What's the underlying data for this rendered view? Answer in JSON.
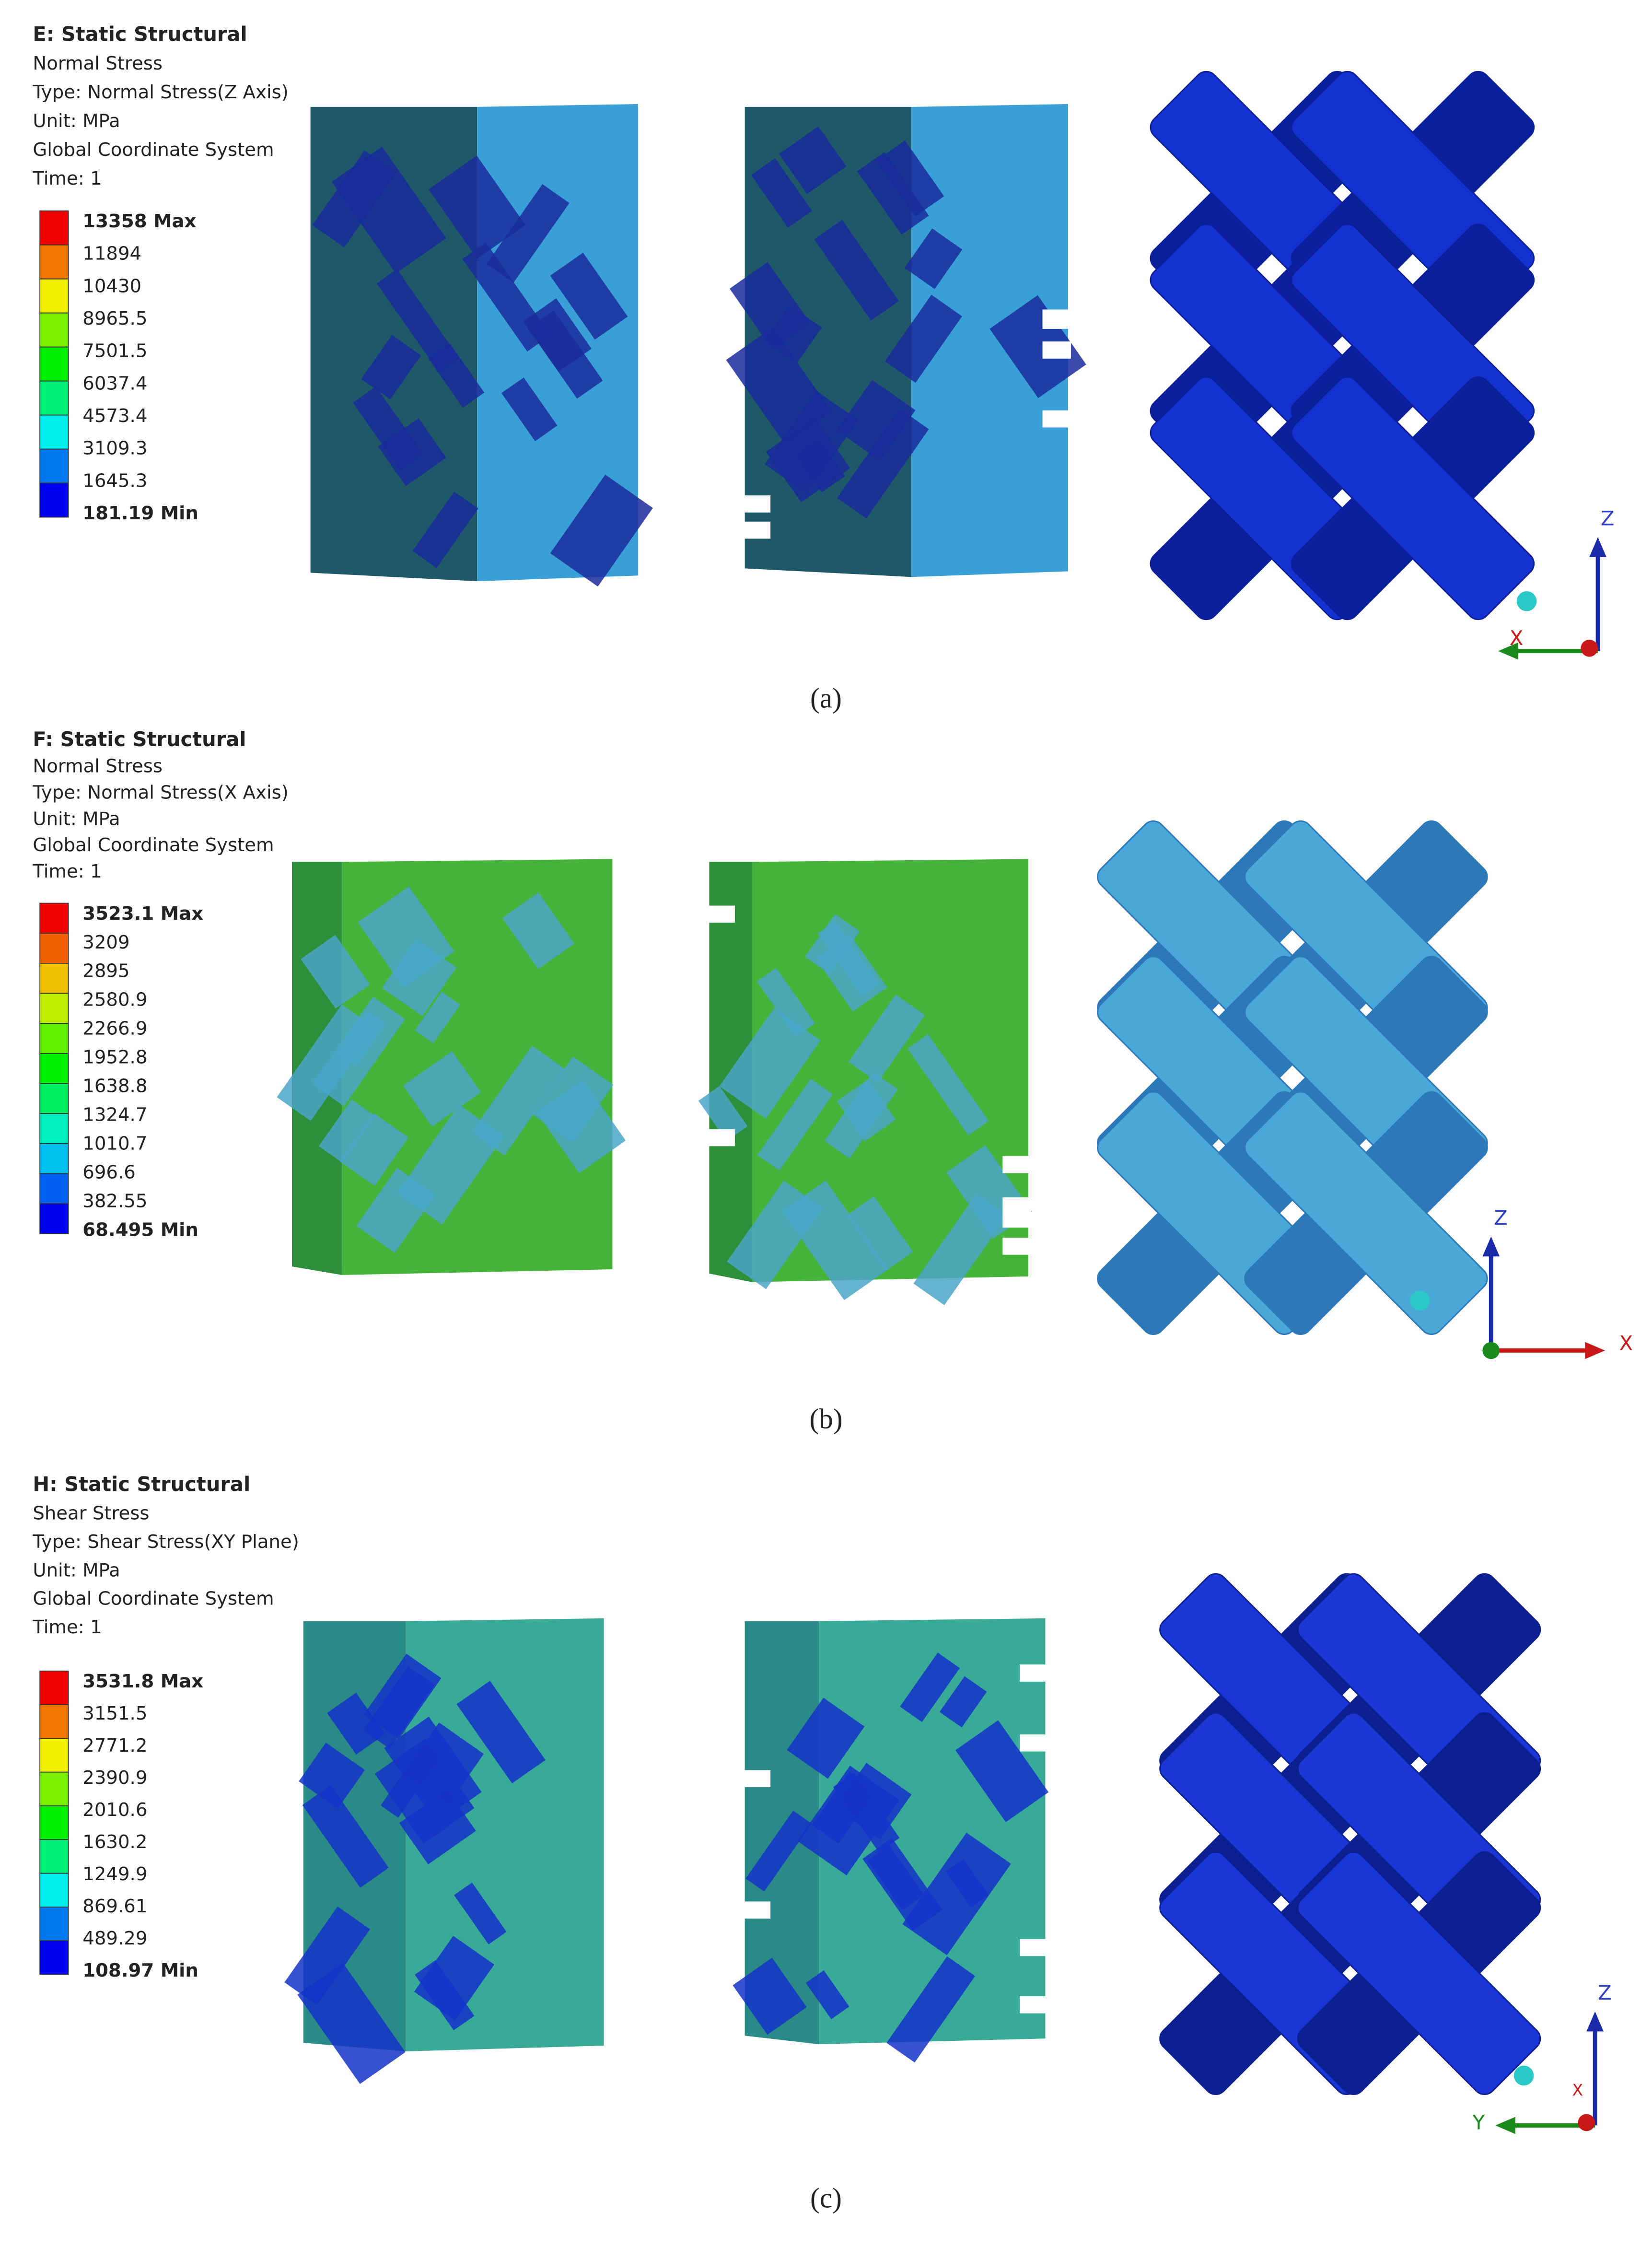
{
  "panels": [
    {
      "title": "E: Static Structural",
      "lines": [
        "Normal Stress",
        "Type: Normal Stress(Z Axis)",
        "Unit: MPa",
        "Global Coordinate System",
        "Time: 1"
      ],
      "legend": [
        "13358 Max",
        "11894",
        "10430",
        "8965.5",
        "7501.5",
        "6037.4",
        "4573.4",
        "3109.3",
        "1645.3",
        "181.19 Min"
      ],
      "axes": [
        "Z",
        "X"
      ],
      "caption": "(a)"
    },
    {
      "title": "F: Static Structural",
      "lines": [
        "Normal Stress",
        "Type: Normal Stress(X Axis)",
        "Unit: MPa",
        "Global Coordinate System",
        "Time: 1"
      ],
      "legend": [
        "3523.1 Max",
        "3209",
        "2895",
        "2580.9",
        "2266.9",
        "1952.8",
        "1638.8",
        "1324.7",
        "1010.7",
        "696.6",
        "382.55",
        "68.495 Min"
      ],
      "axes": [
        "Z",
        "X"
      ],
      "caption": "(b)"
    },
    {
      "title": "H: Static Structural",
      "lines": [
        "Shear Stress",
        "Type: Shear Stress(XY Plane)",
        "Unit: MPa",
        "Global Coordinate System",
        "Time: 1"
      ],
      "legend": [
        "3531.8 Max",
        "3151.5",
        "2771.2",
        "2390.9",
        "2010.6",
        "1630.2",
        "1249.9",
        "869.61",
        "489.29",
        "108.97 Min"
      ],
      "axes": [
        "Z",
        "Y",
        "X"
      ],
      "caption": "(c)"
    }
  ]
}
